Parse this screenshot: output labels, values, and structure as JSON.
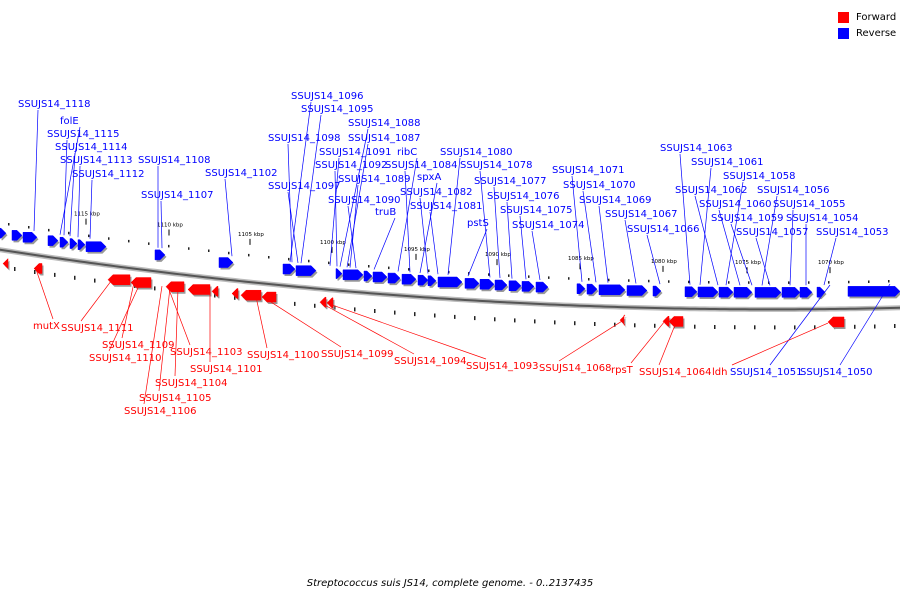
{
  "legend": {
    "forward_label": "Forward",
    "reverse_label": "Reverse",
    "forward_color": "#ff0000",
    "reverse_color": "#0000ff"
  },
  "caption": "Streptococcus suis JS14, complete genome. - 0..2137435",
  "scale_labels": [
    "1115 kbp",
    "1110 kbp",
    "1105 kbp",
    "1100 kbp",
    "1095 kbp",
    "1090 kbp",
    "1085 kbp",
    "1080 kbp",
    "1075 kbp",
    "1070 kbp"
  ],
  "reverse_genes": [
    "SSUJS14_1118",
    "folE",
    "SSUJS14_1115",
    "SSUJS14_1114",
    "SSUJS14_1113",
    "SSUJS14_1112",
    "SSUJS14_1108",
    "SSUJS14_1107",
    "SSUJS14_1102",
    "SSUJS14_1096",
    "SSUJS14_1095",
    "SSUJS14_1098",
    "SSUJS14_1097",
    "SSUJS14_1088",
    "SSUJS14_1087",
    "SSUJS14_1091",
    "SSUJS14_1092",
    "SSUJS14_1089",
    "SSUJS14_1090",
    "truB",
    "ribC",
    "SSUJS14_1084",
    "spxA",
    "SSUJS14_1082",
    "SSUJS14_1081",
    "SSUJS14_1080",
    "pstS",
    "SSUJS14_1078",
    "SSUJS14_1077",
    "SSUJS14_1076",
    "SSUJS14_1075",
    "SSUJS14_1074",
    "SSUJS14_1071",
    "SSUJS14_1070",
    "SSUJS14_1069",
    "SSUJS14_1067",
    "SSUJS14_1066",
    "SSUJS14_1063",
    "SSUJS14_1061",
    "SSUJS14_1062",
    "SSUJS14_1058",
    "SSUJS14_1060",
    "SSUJS14_1056",
    "SSUJS14_1059",
    "SSUJS14_1055",
    "SSUJS14_1057",
    "SSUJS14_1054",
    "SSUJS14_1053",
    "SSUJS14_1051",
    "SSUJS14_1050"
  ],
  "forward_genes": [
    "mutX",
    "SSUJS14_1111",
    "SSUJS14_1109",
    "SSUJS14_1110",
    "SSUJS14_1103",
    "SSUJS14_1101",
    "SSUJS14_1104",
    "SSUJS14_1105",
    "SSUJS14_1106",
    "SSUJS14_1100",
    "SSUJS14_1099",
    "SSUJS14_1094",
    "SSUJS14_1093",
    "SSUJS14_1068",
    "rpsT",
    "SSUJS14_1064",
    "ldh"
  ]
}
